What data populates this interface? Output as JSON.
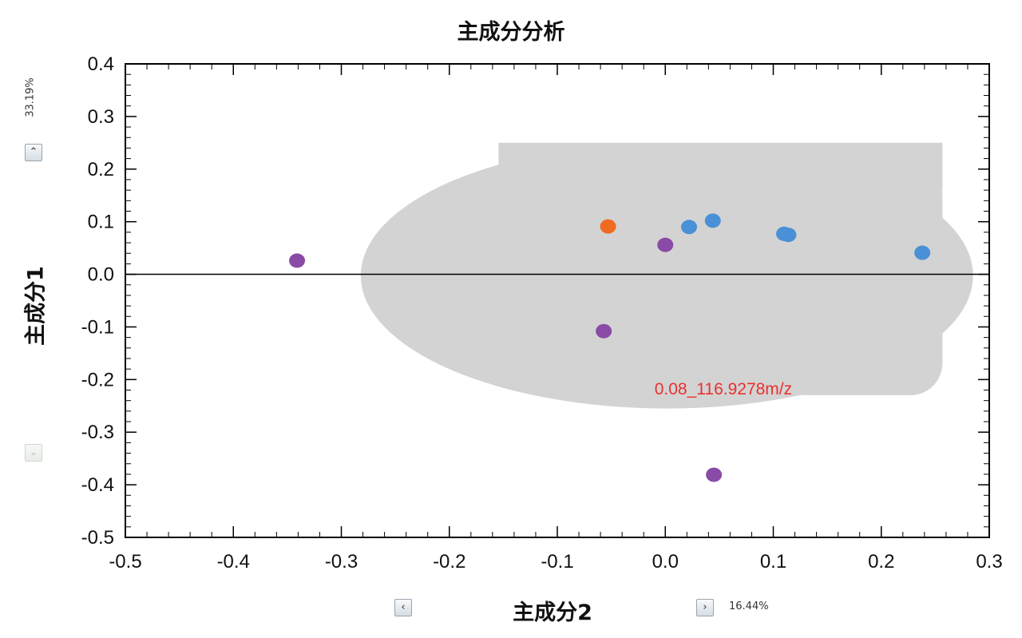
{
  "chart_data": {
    "type": "scatter",
    "title": "主成分分析",
    "xlabel": "主成分2",
    "ylabel": "主成分1",
    "xlim": [
      -0.5,
      0.3
    ],
    "ylim": [
      -0.5,
      0.4
    ],
    "x_ticks": [
      "-0.5",
      "-0.4",
      "-0.3",
      "-0.2",
      "-0.1",
      "0.0",
      "0.1",
      "0.2",
      "0.3"
    ],
    "y_ticks": [
      "0.4",
      "0.3",
      "0.2",
      "0.1",
      "0.0",
      "-0.1",
      "-0.2",
      "-0.3",
      "-0.4",
      "-0.5"
    ],
    "loadings_cloud": {
      "x_range": [
        -0.282,
        0.285
      ],
      "y_range": [
        -0.255,
        0.25
      ],
      "color": "#d3d3d3",
      "highlight_label": "0.08_116.9278m/z",
      "highlight_color": "#e8312f"
    },
    "series": [
      {
        "color": "#f06b22",
        "points": [
          [
            -0.053,
            0.091
          ]
        ]
      },
      {
        "color": "#4a90d6",
        "points": [
          [
            0.022,
            0.09
          ],
          [
            0.044,
            0.102
          ],
          [
            0.11,
            0.077
          ],
          [
            0.114,
            0.075
          ],
          [
            0.238,
            0.041
          ]
        ]
      },
      {
        "color": "#8a4ba6",
        "points": [
          [
            -0.341,
            0.026
          ],
          [
            0.0,
            0.056
          ],
          [
            -0.057,
            -0.108
          ],
          [
            0.045,
            -0.381
          ]
        ]
      }
    ],
    "grid": false
  },
  "ui": {
    "y_variance": "33.19%",
    "x_variance": "16.44%",
    "up_icon": "chevron-up-icon",
    "down_icon": "chevron-down-icon",
    "left_icon": "chevron-left-icon",
    "right_icon": "chevron-right-icon"
  }
}
